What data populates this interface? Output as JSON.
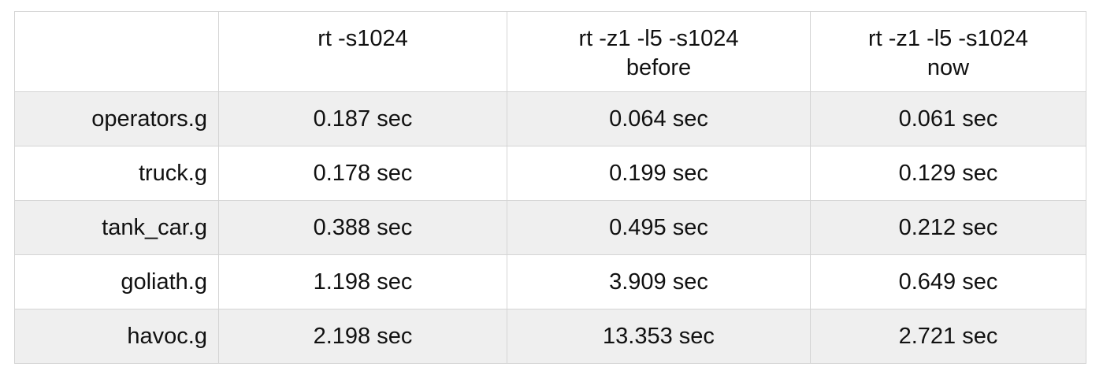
{
  "chart_data": {
    "type": "table",
    "columns": [
      {
        "label_lines": [
          ""
        ]
      },
      {
        "label_lines": [
          "rt -s1024"
        ]
      },
      {
        "label_lines": [
          "rt -z1 -l5 -s1024",
          "before"
        ]
      },
      {
        "label_lines": [
          "rt -z1 -l5 -s1024",
          "now"
        ]
      }
    ],
    "unit": "sec",
    "rows": [
      {
        "label": "operators.g",
        "cells": [
          "0.187 sec",
          "0.064 sec",
          "0.061 sec"
        ],
        "values": [
          0.187,
          0.064,
          0.061
        ]
      },
      {
        "label": "truck.g",
        "cells": [
          "0.178 sec",
          "0.199 sec",
          "0.129 sec"
        ],
        "values": [
          0.178,
          0.199,
          0.129
        ]
      },
      {
        "label": "tank_car.g",
        "cells": [
          "0.388 sec",
          "0.495 sec",
          "0.212 sec"
        ],
        "values": [
          0.388,
          0.495,
          0.212
        ]
      },
      {
        "label": "goliath.g",
        "cells": [
          "1.198 sec",
          "3.909 sec",
          "0.649 sec"
        ],
        "values": [
          1.198,
          3.909,
          0.649
        ]
      },
      {
        "label": "havoc.g",
        "cells": [
          "2.198 sec",
          "13.353 sec",
          "2.721 sec"
        ],
        "values": [
          2.198,
          13.353,
          2.721
        ]
      }
    ],
    "colors": {
      "shaded_row": "#efefef",
      "plain_row": "#ffffff",
      "grid": "#d4d4d4",
      "text": "#111111"
    }
  }
}
